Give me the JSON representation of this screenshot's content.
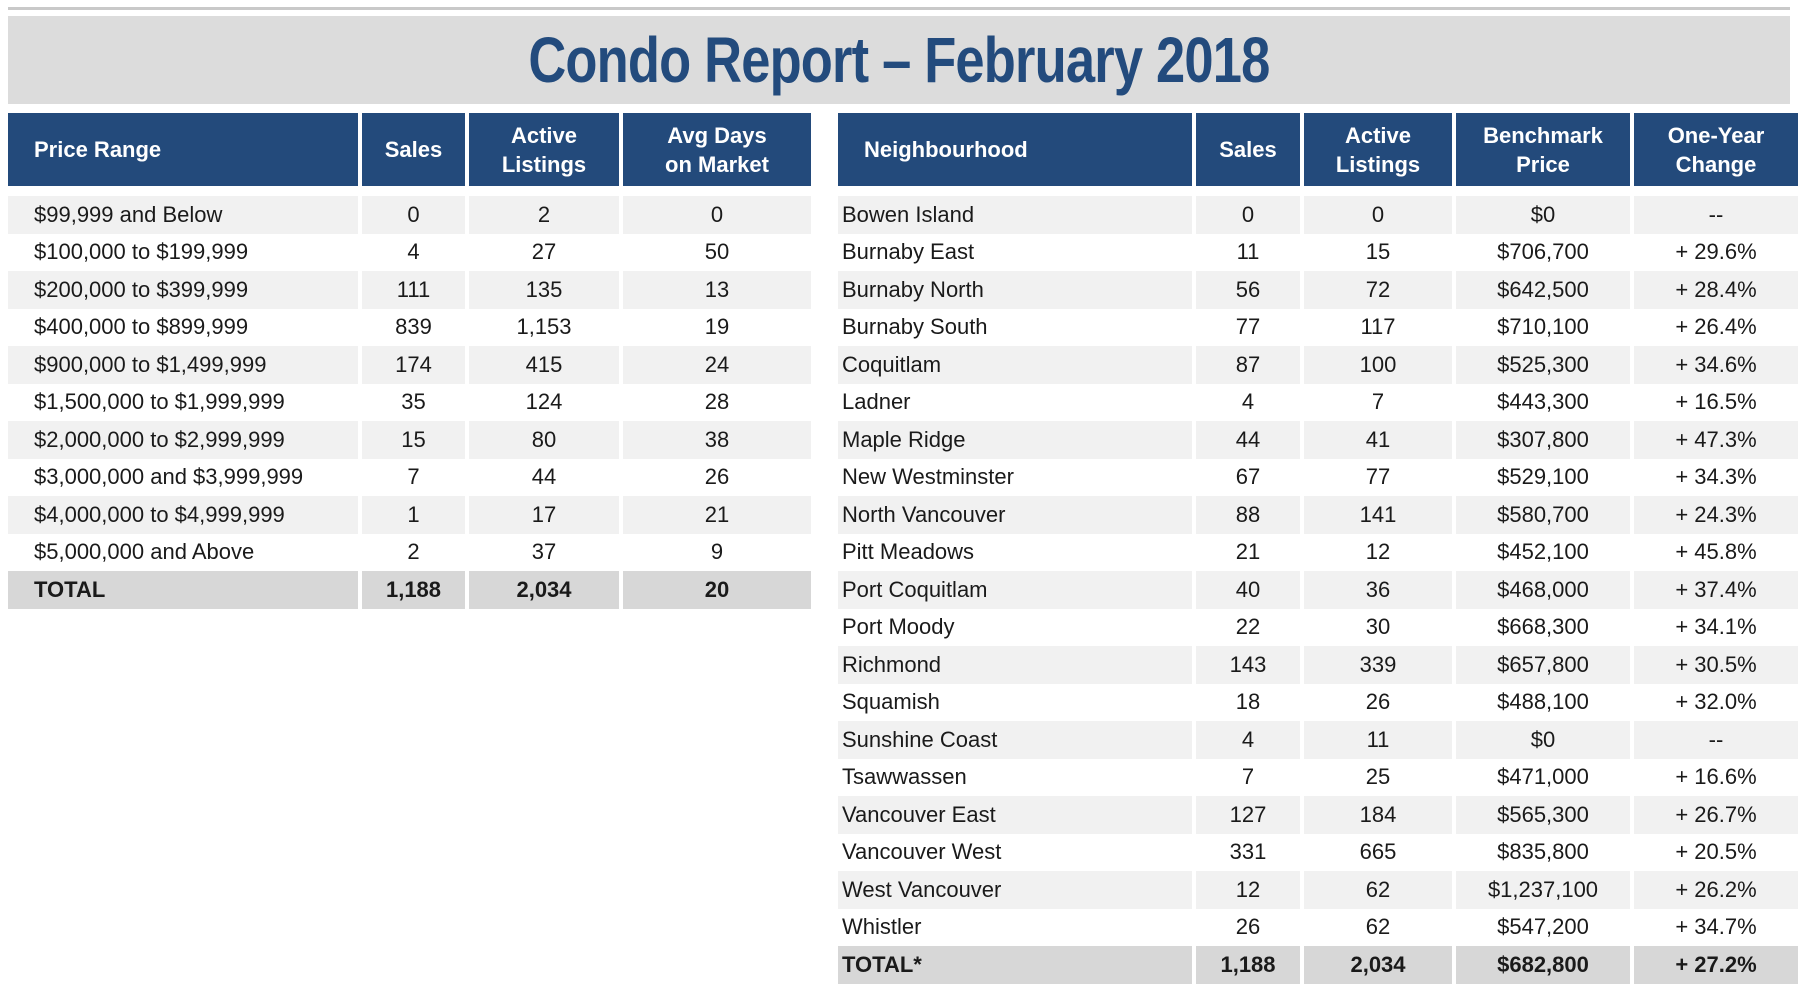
{
  "title": "Condo Report – February 2018",
  "price_table": {
    "headers": [
      "Price Range",
      "Sales",
      "Active Listings",
      "Avg Days on Market"
    ],
    "rows": [
      [
        "$99,999 and Below",
        "0",
        "2",
        "0"
      ],
      [
        "$100,000 to $199,999",
        "4",
        "27",
        "50"
      ],
      [
        "$200,000 to $399,999",
        "111",
        "135",
        "13"
      ],
      [
        "$400,000 to $899,999",
        "839",
        "1,153",
        "19"
      ],
      [
        "$900,000 to $1,499,999",
        "174",
        "415",
        "24"
      ],
      [
        "$1,500,000 to $1,999,999",
        "35",
        "124",
        "28"
      ],
      [
        "$2,000,000 to $2,999,999",
        "15",
        "80",
        "38"
      ],
      [
        "$3,000,000 and $3,999,999",
        "7",
        "44",
        "26"
      ],
      [
        "$4,000,000 to $4,999,999",
        "1",
        "17",
        "21"
      ],
      [
        "$5,000,000 and Above",
        "2",
        "37",
        "9"
      ]
    ],
    "total": [
      "TOTAL",
      "1,188",
      "2,034",
      "20"
    ]
  },
  "neighbourhood_table": {
    "headers": [
      "Neighbourhood",
      "Sales",
      "Active Listings",
      "Benchmark Price",
      "One-Year Change"
    ],
    "rows": [
      [
        "Bowen Island",
        "0",
        "0",
        "$0",
        "--"
      ],
      [
        "Burnaby East",
        "11",
        "15",
        "$706,700",
        "+ 29.6%"
      ],
      [
        "Burnaby North",
        "56",
        "72",
        "$642,500",
        "+ 28.4%"
      ],
      [
        "Burnaby South",
        "77",
        "117",
        "$710,100",
        "+ 26.4%"
      ],
      [
        "Coquitlam",
        "87",
        "100",
        "$525,300",
        "+ 34.6%"
      ],
      [
        "Ladner",
        "4",
        "7",
        "$443,300",
        "+ 16.5%"
      ],
      [
        "Maple Ridge",
        "44",
        "41",
        "$307,800",
        "+ 47.3%"
      ],
      [
        "New Westminster",
        "67",
        "77",
        "$529,100",
        "+ 34.3%"
      ],
      [
        "North Vancouver",
        "88",
        "141",
        "$580,700",
        "+ 24.3%"
      ],
      [
        "Pitt Meadows",
        "21",
        "12",
        "$452,100",
        "+ 45.8%"
      ],
      [
        "Port Coquitlam",
        "40",
        "36",
        "$468,000",
        "+ 37.4%"
      ],
      [
        "Port Moody",
        "22",
        "30",
        "$668,300",
        "+ 34.1%"
      ],
      [
        "Richmond",
        "143",
        "339",
        "$657,800",
        "+ 30.5%"
      ],
      [
        "Squamish",
        "18",
        "26",
        "$488,100",
        "+ 32.0%"
      ],
      [
        "Sunshine Coast",
        "4",
        "11",
        "$0",
        "--"
      ],
      [
        "Tsawwassen",
        "7",
        "25",
        "$471,000",
        "+ 16.6%"
      ],
      [
        "Vancouver East",
        "127",
        "184",
        "$565,300",
        "+ 26.7%"
      ],
      [
        "Vancouver West",
        "331",
        "665",
        "$835,800",
        "+ 20.5%"
      ],
      [
        "West Vancouver",
        "12",
        "62",
        "$1,237,100",
        "+ 26.2%"
      ],
      [
        "Whistler",
        "26",
        "62",
        "$547,200",
        "+ 34.7%"
      ]
    ],
    "total": [
      "TOTAL*",
      "1,188",
      "2,034",
      "$682,800",
      "+ 27.2%"
    ]
  }
}
